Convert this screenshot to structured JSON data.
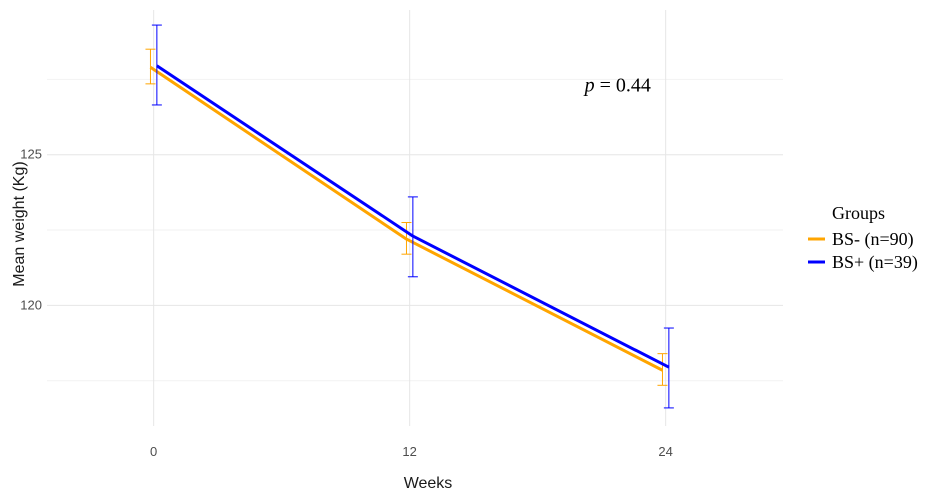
{
  "chart_data": {
    "type": "line",
    "xlabel": "Weeks",
    "ylabel": "Mean weight (Kg)",
    "x": [
      0,
      12,
      24
    ],
    "x_ticks": [
      "0",
      "12",
      "24"
    ],
    "y_ticks": [
      "120",
      "125"
    ],
    "y_tick_values": [
      120,
      125
    ],
    "xlim": [
      -5,
      29.5
    ],
    "ylim": [
      116,
      129.8
    ],
    "grid": true,
    "annotation": {
      "italic": "p",
      "rest": " = 0.44",
      "x": 20.2,
      "y": 127.1
    },
    "legend": {
      "title": "Groups",
      "placement": "right"
    },
    "series": [
      {
        "name": "BS- (n=90)",
        "color": "#FFA500",
        "x_offset": -0.15,
        "values": [
          127.9,
          122.2,
          117.85
        ],
        "err_low": [
          127.35,
          121.7,
          117.35
        ],
        "err_high": [
          128.5,
          122.75,
          118.4
        ]
      },
      {
        "name": "BS+ (n=39)",
        "color": "#0000FF",
        "x_offset": 0.15,
        "values": [
          127.95,
          122.3,
          117.95
        ],
        "err_low": [
          126.65,
          120.95,
          116.6
        ],
        "err_high": [
          129.3,
          123.6,
          119.25
        ]
      }
    ]
  }
}
